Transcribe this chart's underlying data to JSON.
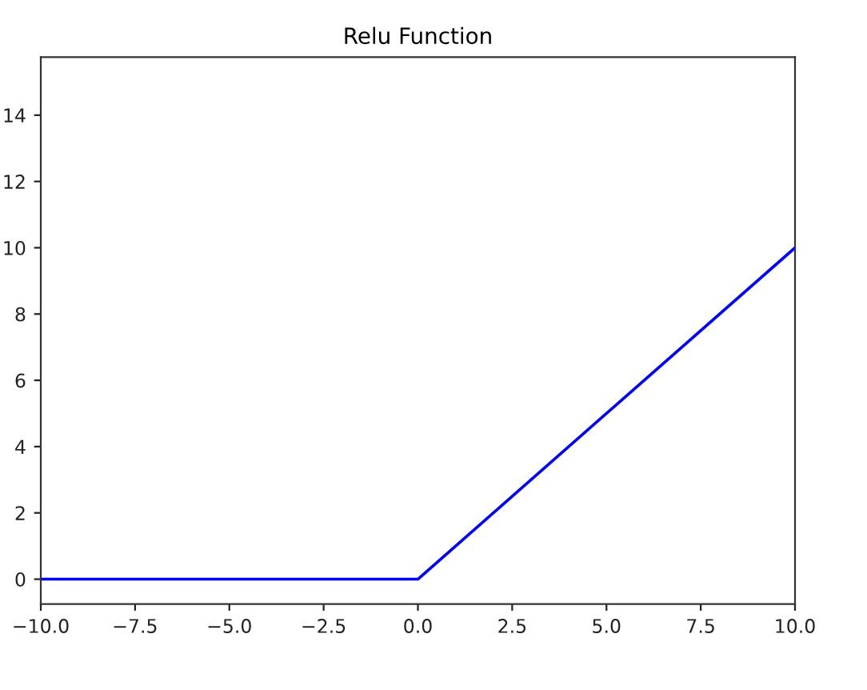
{
  "chart_data": {
    "type": "line",
    "title": "Relu Function",
    "x": [
      -10,
      0,
      10
    ],
    "series": [
      {
        "color": "#0000ff",
        "values": [
          0,
          0,
          10
        ]
      }
    ],
    "xlim": [
      -10,
      10
    ],
    "xticks": [
      {
        "value": -10,
        "label": "−10.0"
      },
      {
        "value": -7.5,
        "label": "−7.5"
      },
      {
        "value": -5,
        "label": "−5.0"
      },
      {
        "value": -2.5,
        "label": "−2.5"
      },
      {
        "value": 0,
        "label": "0.0"
      },
      {
        "value": 2.5,
        "label": "2.5"
      },
      {
        "value": 5,
        "label": "5.0"
      },
      {
        "value": 7.5,
        "label": "7.5"
      },
      {
        "value": 10,
        "label": "10.0"
      }
    ],
    "ylim": [
      -0.75,
      15.75
    ],
    "yticks": [
      0,
      2,
      4,
      6,
      8,
      10,
      12,
      14
    ],
    "grid": false,
    "legend": false
  }
}
